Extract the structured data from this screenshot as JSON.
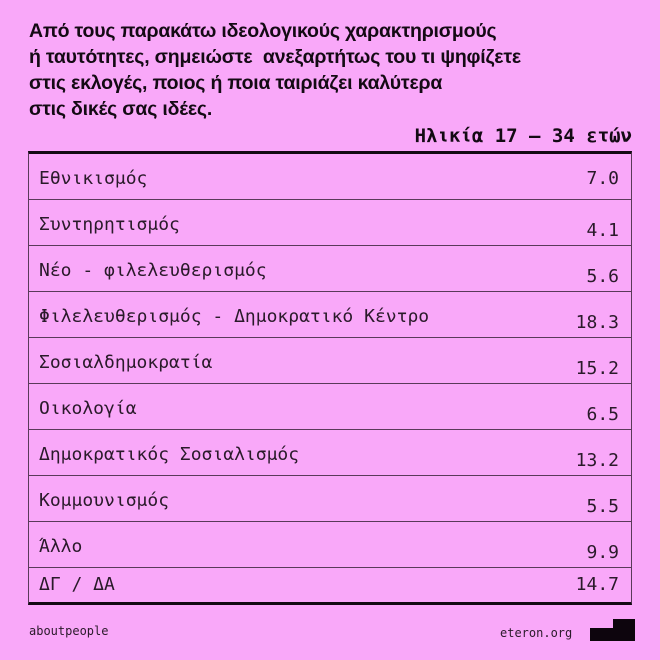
{
  "title": "Από τους παρακάτω ιδεολογικούς χαρακτηρισμούς\nή ταυτότητες, σημειώστε  ανεξαρτήτως του τι ψηφίζετε\nστις εκλογές, ποιος ή ποια ταιριάζει καλύτερα\nστις δικές σας ιδέες.",
  "subtitle": "Ηλικία 17 – 34 ετών",
  "rows": [
    {
      "label": "Εθνικισμός",
      "value": "7.0"
    },
    {
      "label": "Συντηρητισμός",
      "value": "4.1"
    },
    {
      "label": "Νέο - φιλελευθερισμός",
      "value": "5.6"
    },
    {
      "label": "Φιλελευθερισμός - Δημοκρατικό Κέντρο",
      "value": "18.3"
    },
    {
      "label": "Σοσιαλδημοκρατία",
      "value": "15.2"
    },
    {
      "label": "Οικολογία",
      "value": "6.5"
    },
    {
      "label": "Δημοκρατικός Σοσιαλισμός",
      "value": "13.2"
    },
    {
      "label": "Κομμουνισμός",
      "value": "5.5"
    },
    {
      "label": "Άλλο",
      "value": "9.9"
    },
    {
      "label": "ΔΓ / ΔΑ",
      "value": "14.7"
    }
  ],
  "footer": {
    "left": "aboutpeople",
    "right": "eteron.org",
    "logo_icon": "eteron-logo-icon"
  },
  "colors": {
    "background": "#f9a8f9",
    "text": "#140a14"
  }
}
